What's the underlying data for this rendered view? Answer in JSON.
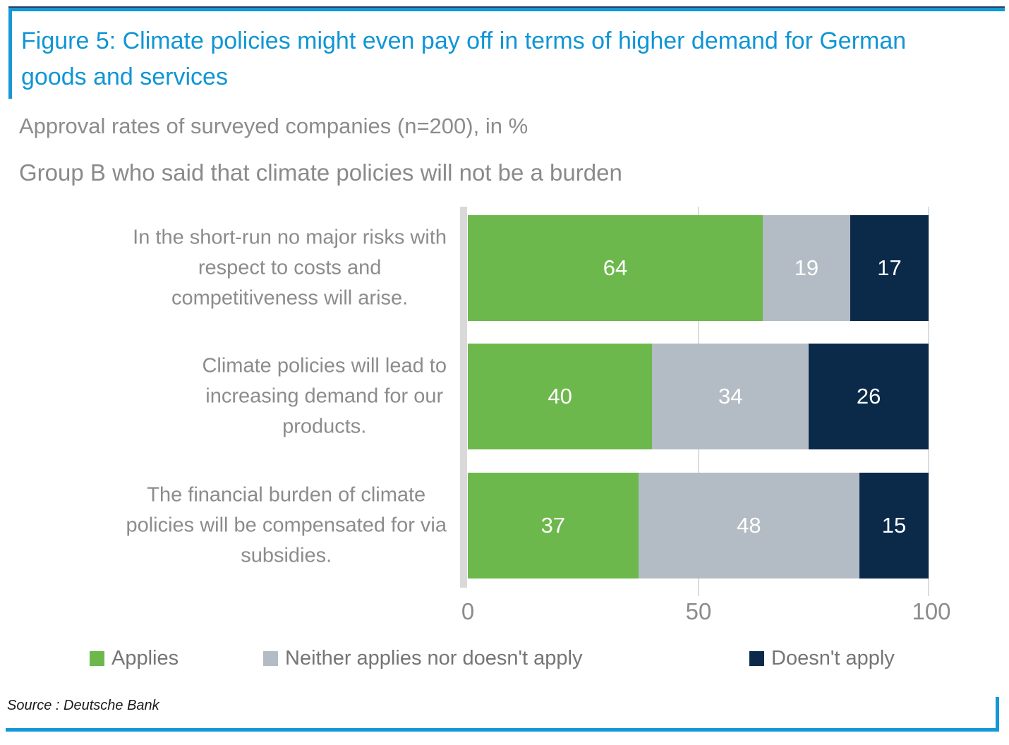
{
  "figure": {
    "title": "Figure 5: Climate policies might even pay off in terms of higher demand for German goods and services",
    "subtitle": "Approval rates of surveyed companies (n=200), in %",
    "group_label": "Group B who said that climate policies will not be a burden",
    "source": "Source : Deutsche Bank"
  },
  "colors": {
    "accent_blue": "#1498d8",
    "frame_navy": "#24405f",
    "title_blue": "#1095d5",
    "text_gray": "#8c8c8c",
    "gridline_gray": "#dcdcdc",
    "applies_green": "#6db84c",
    "neutral_gray": "#b3bcc4",
    "doesnt_apply_navy": "#0b2a4a"
  },
  "chart_data": {
    "type": "bar",
    "stacked": true,
    "orientation": "horizontal",
    "title": "Group B who said that climate policies will not be a burden",
    "categories": [
      "In the short-run no major risks with respect to costs and competitiveness will arise.",
      "Climate policies will lead to increasing demand for our products.",
      "The financial burden of climate policies will be compensated for via subsidies."
    ],
    "categories_lines": [
      [
        "In the short-run no major risks with",
        "respect to costs and",
        "competitiveness will arise."
      ],
      [
        "Climate policies will lead to",
        "increasing demand for our",
        "products."
      ],
      [
        "The financial burden of climate",
        "policies will be compensated for via",
        "subsidies."
      ]
    ],
    "series": [
      {
        "name": "Applies",
        "color": "#6db84c",
        "values": [
          64,
          40,
          37
        ]
      },
      {
        "name": "Neither applies nor doesn't apply",
        "color": "#b3bcc4",
        "values": [
          19,
          34,
          48
        ]
      },
      {
        "name": "Doesn't apply",
        "color": "#0b2a4a",
        "values": [
          17,
          26,
          15
        ]
      }
    ],
    "xlim": [
      0,
      100
    ],
    "x_ticks": [
      "0",
      "50",
      "100"
    ],
    "value_labels": "inside-center",
    "legend_position": "bottom",
    "grid": "vertical gridlines at 50 and 100"
  }
}
